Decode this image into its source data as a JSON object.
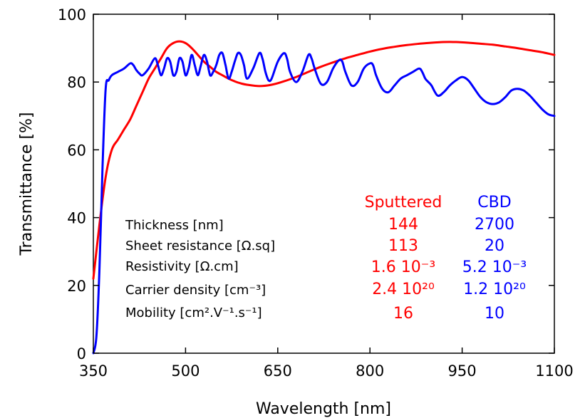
{
  "chart_data": {
    "type": "line",
    "xlabel": "Wavelength [nm]",
    "ylabel": "Transmittance [%]",
    "xlim": [
      350,
      1100
    ],
    "ylim": [
      0,
      100
    ],
    "x_ticks": [
      "350",
      "500",
      "650",
      "800",
      "950",
      "1100"
    ],
    "y_ticks": [
      "0",
      "20",
      "40",
      "60",
      "80",
      "100"
    ],
    "grid": false,
    "legend": "none",
    "series": [
      {
        "name": "Sputtered",
        "color": "#ff0000",
        "points": [
          [
            350,
            22
          ],
          [
            360,
            38
          ],
          [
            370,
            52
          ],
          [
            380,
            60
          ],
          [
            390,
            63
          ],
          [
            400,
            66
          ],
          [
            410,
            69
          ],
          [
            420,
            73
          ],
          [
            430,
            77
          ],
          [
            440,
            81
          ],
          [
            450,
            84
          ],
          [
            460,
            87
          ],
          [
            470,
            90
          ],
          [
            480,
            91.5
          ],
          [
            490,
            92
          ],
          [
            500,
            91.5
          ],
          [
            510,
            90
          ],
          [
            520,
            88
          ],
          [
            530,
            86
          ],
          [
            540,
            84.5
          ],
          [
            550,
            83
          ],
          [
            560,
            82
          ],
          [
            570,
            81
          ],
          [
            580,
            80.2
          ],
          [
            590,
            79.6
          ],
          [
            600,
            79.2
          ],
          [
            620,
            78.8
          ],
          [
            640,
            79.2
          ],
          [
            660,
            80.2
          ],
          [
            680,
            81.5
          ],
          [
            700,
            83
          ],
          [
            720,
            84.5
          ],
          [
            740,
            85.8
          ],
          [
            760,
            87
          ],
          [
            780,
            88
          ],
          [
            800,
            89
          ],
          [
            820,
            89.8
          ],
          [
            840,
            90.4
          ],
          [
            860,
            90.9
          ],
          [
            880,
            91.3
          ],
          [
            900,
            91.6
          ],
          [
            920,
            91.8
          ],
          [
            940,
            91.8
          ],
          [
            960,
            91.6
          ],
          [
            980,
            91.3
          ],
          [
            1000,
            91
          ],
          [
            1020,
            90.5
          ],
          [
            1040,
            90
          ],
          [
            1060,
            89.4
          ],
          [
            1080,
            88.8
          ],
          [
            1100,
            88
          ]
        ]
      },
      {
        "name": "CBD",
        "color": "#0000ff",
        "points": [
          [
            350,
            0
          ],
          [
            355,
            5
          ],
          [
            360,
            25
          ],
          [
            365,
            55
          ],
          [
            370,
            78
          ],
          [
            375,
            80.5
          ],
          [
            380,
            82
          ],
          [
            390,
            83
          ],
          [
            400,
            84
          ],
          [
            410,
            85.5
          ],
          [
            415,
            85
          ],
          [
            420,
            83.5
          ],
          [
            425,
            82.5
          ],
          [
            430,
            82
          ],
          [
            440,
            84
          ],
          [
            450,
            87
          ],
          [
            455,
            85
          ],
          [
            460,
            82
          ],
          [
            465,
            84
          ],
          [
            470,
            87
          ],
          [
            475,
            86
          ],
          [
            480,
            82
          ],
          [
            485,
            83
          ],
          [
            490,
            87
          ],
          [
            495,
            86
          ],
          [
            500,
            82
          ],
          [
            505,
            84
          ],
          [
            510,
            88
          ],
          [
            515,
            85
          ],
          [
            520,
            82
          ],
          [
            525,
            85
          ],
          [
            530,
            88
          ],
          [
            535,
            86
          ],
          [
            540,
            82
          ],
          [
            545,
            83
          ],
          [
            550,
            85
          ],
          [
            555,
            88
          ],
          [
            560,
            88.5
          ],
          [
            565,
            85
          ],
          [
            570,
            81
          ],
          [
            575,
            83
          ],
          [
            580,
            86
          ],
          [
            585,
            88.5
          ],
          [
            590,
            88
          ],
          [
            595,
            85
          ],
          [
            600,
            81
          ],
          [
            610,
            84
          ],
          [
            620,
            88.5
          ],
          [
            625,
            87
          ],
          [
            630,
            83
          ],
          [
            635,
            80.5
          ],
          [
            640,
            81
          ],
          [
            650,
            86
          ],
          [
            660,
            88.5
          ],
          [
            665,
            87
          ],
          [
            670,
            83
          ],
          [
            680,
            80
          ],
          [
            690,
            83
          ],
          [
            700,
            88
          ],
          [
            705,
            87
          ],
          [
            710,
            84
          ],
          [
            720,
            79.5
          ],
          [
            730,
            80
          ],
          [
            740,
            84
          ],
          [
            750,
            86.5
          ],
          [
            755,
            86
          ],
          [
            760,
            83
          ],
          [
            770,
            79
          ],
          [
            780,
            80
          ],
          [
            790,
            84
          ],
          [
            800,
            85.5
          ],
          [
            805,
            85
          ],
          [
            810,
            82
          ],
          [
            820,
            78
          ],
          [
            830,
            77
          ],
          [
            840,
            79
          ],
          [
            850,
            81
          ],
          [
            860,
            82
          ],
          [
            870,
            83
          ],
          [
            880,
            84
          ],
          [
            885,
            83
          ],
          [
            890,
            81
          ],
          [
            895,
            80
          ],
          [
            900,
            79
          ],
          [
            910,
            76
          ],
          [
            920,
            77
          ],
          [
            930,
            79
          ],
          [
            940,
            80.5
          ],
          [
            950,
            81.5
          ],
          [
            960,
            80.5
          ],
          [
            970,
            78
          ],
          [
            980,
            75.5
          ],
          [
            990,
            74
          ],
          [
            1000,
            73.5
          ],
          [
            1010,
            74
          ],
          [
            1020,
            75.5
          ],
          [
            1030,
            77.5
          ],
          [
            1040,
            78
          ],
          [
            1050,
            77.5
          ],
          [
            1060,
            76
          ],
          [
            1070,
            74
          ],
          [
            1080,
            72
          ],
          [
            1090,
            70.5
          ],
          [
            1100,
            70
          ]
        ]
      }
    ],
    "annotations": {
      "properties": {
        "header": [
          "Sputtered",
          "CBD"
        ],
        "rows": [
          {
            "label": "Thickness [nm]",
            "sputtered": "144",
            "cbd": "2700"
          },
          {
            "label": "Sheet resistance [Ω.sq]",
            "sputtered": "113",
            "cbd": "20"
          },
          {
            "label": "Resistivity [Ω.cm]",
            "sputtered": "1.6 10⁻³",
            "cbd": "5.2 10⁻³"
          },
          {
            "label": "Carrier density [cm⁻³]",
            "sputtered": "2.4 10²⁰",
            "cbd": "1.2 10²⁰"
          },
          {
            "label": "Mobility [cm².V⁻¹.s⁻¹]",
            "sputtered": "16",
            "cbd": "10"
          }
        ]
      }
    }
  }
}
